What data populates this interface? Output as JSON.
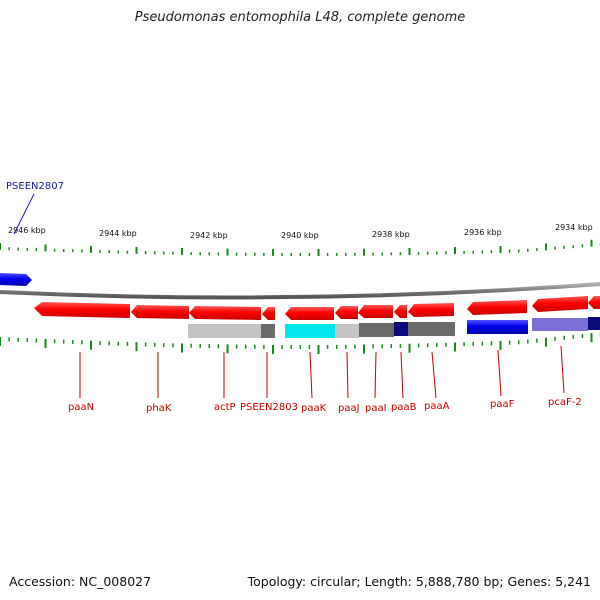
{
  "title": "Pseudomonas entomophila L48, complete genome",
  "footer": {
    "accession": "Accession: NC_008027",
    "summary": "Topology: circular; Length: 5,888,780 bp; Genes: 5,241"
  },
  "scale_labels": [
    "2946 kbp",
    "2944 kbp",
    "2942 kbp",
    "2940 kbp",
    "2938 kbp",
    "2936 kbp",
    "2934 kbp"
  ],
  "highlighted_gene": "PSEEN2807",
  "gene_labels": [
    "paaN",
    "phaK",
    "actP",
    "PSEEN2803",
    "paaK",
    "paaJ",
    "paaI",
    "paaB",
    "paaA",
    "paaF",
    "pcaF-2"
  ],
  "colors": {
    "gene_forward": "#ff0000",
    "gene_blue": "#0000ee",
    "label_red": "#cc0000",
    "label_blue": "#1a1aaa",
    "tick_green": "#1a8a1a",
    "backbone": "#7a7a7a",
    "feature_cyan": "#00e8ee",
    "feature_light_gray": "#c4c4c4",
    "feature_dark_gray": "#6a6a6a",
    "feature_navy": "#0a0a7a",
    "feature_lavender": "#7a70d8"
  }
}
